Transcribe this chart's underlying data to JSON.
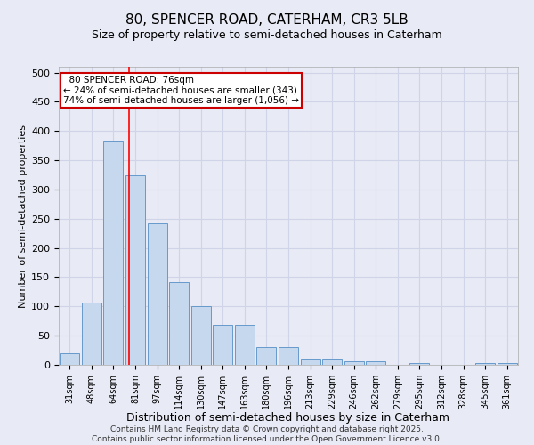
{
  "title1": "80, SPENCER ROAD, CATERHAM, CR3 5LB",
  "title2": "Size of property relative to semi-detached houses in Caterham",
  "xlabel": "Distribution of semi-detached houses by size in Caterham",
  "ylabel": "Number of semi-detached properties",
  "categories": [
    "31sqm",
    "48sqm",
    "64sqm",
    "81sqm",
    "97sqm",
    "114sqm",
    "130sqm",
    "147sqm",
    "163sqm",
    "180sqm",
    "196sqm",
    "213sqm",
    "229sqm",
    "246sqm",
    "262sqm",
    "279sqm",
    "295sqm",
    "312sqm",
    "328sqm",
    "345sqm",
    "361sqm"
  ],
  "values": [
    20,
    107,
    383,
    325,
    242,
    142,
    101,
    68,
    68,
    30,
    30,
    10,
    10,
    6,
    6,
    0,
    3,
    0,
    0,
    3,
    3
  ],
  "bar_color": "#c5d8ee",
  "bar_edge_color": "#6699cc",
  "grid_color": "#d0d4e8",
  "background_color": "#e8eaf5",
  "red_line_x": 2.73,
  "annotation_text": "  80 SPENCER ROAD: 76sqm  \n← 24% of semi-detached houses are smaller (343)\n74% of semi-detached houses are larger (1,056) →",
  "annotation_box_color": "#ffffff",
  "annotation_box_edge": "#cc0000",
  "footer": "Contains HM Land Registry data © Crown copyright and database right 2025.\nContains public sector information licensed under the Open Government Licence v3.0.",
  "ylim": [
    0,
    510
  ],
  "yticks": [
    0,
    50,
    100,
    150,
    200,
    250,
    300,
    350,
    400,
    450,
    500
  ],
  "title1_fontsize": 11,
  "title2_fontsize": 9,
  "xlabel_fontsize": 9,
  "ylabel_fontsize": 8,
  "tick_fontsize": 8,
  "xtick_fontsize": 7,
  "footer_fontsize": 6.5,
  "annot_fontsize": 7.5
}
